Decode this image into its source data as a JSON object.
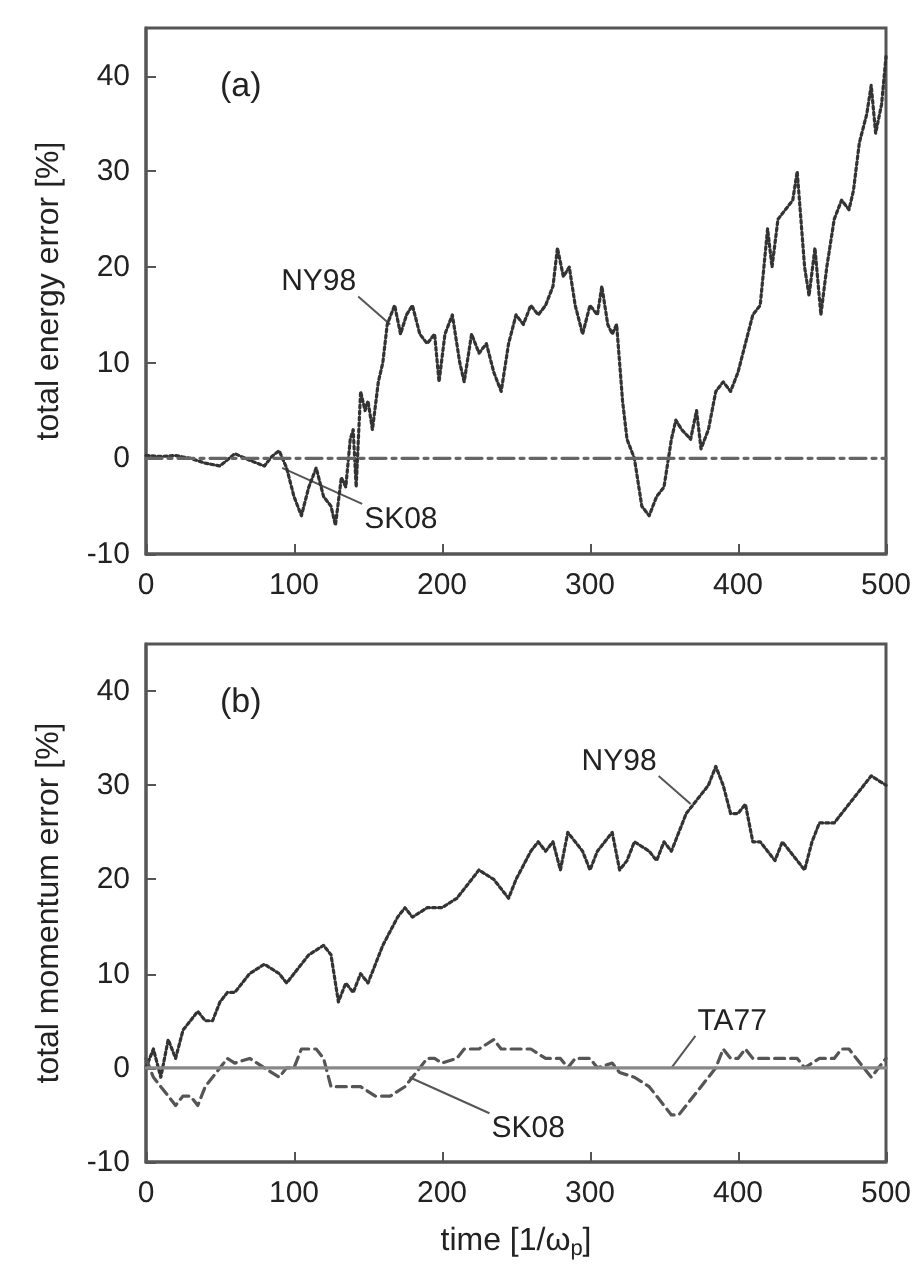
{
  "chart_data": [
    {
      "type": "line",
      "ylabel": "total energy error [%]",
      "xlim": [
        0,
        500
      ],
      "xticks": [
        0,
        100,
        200,
        300,
        400,
        500
      ],
      "ylim": [
        -10,
        45
      ],
      "yticks": [
        -10,
        0,
        10,
        20,
        30,
        40
      ],
      "grid": false,
      "marker": "none",
      "annotations": [
        "(a)",
        {
          "text": "NY98",
          "x": 165,
          "y": 14
        },
        {
          "text": "SK08",
          "x": 92,
          "y": -1
        }
      ],
      "series": [
        {
          "color": "#333333",
          "line_style": "dotted",
          "x": [
            0,
            10,
            20,
            30,
            40,
            50,
            60,
            70,
            80,
            85,
            90,
            95,
            100,
            105,
            110,
            115,
            120,
            125,
            128,
            132,
            135,
            138,
            140,
            142,
            145,
            148,
            150,
            153,
            157,
            160,
            163,
            168,
            172,
            176,
            180,
            185,
            190,
            195,
            198,
            202,
            207,
            212,
            215,
            220,
            225,
            230,
            235,
            240,
            245,
            250,
            255,
            260,
            265,
            270,
            275,
            278,
            282,
            286,
            290,
            295,
            300,
            305,
            308,
            312,
            315,
            318,
            322,
            325,
            330,
            335,
            340,
            345,
            350,
            355,
            358,
            362,
            368,
            372,
            375,
            380,
            385,
            390,
            395,
            400,
            405,
            410,
            415,
            420,
            423,
            427,
            432,
            437,
            440,
            445,
            448,
            452,
            456,
            460,
            465,
            470,
            475,
            478,
            482,
            487,
            490,
            493,
            497,
            500
          ],
          "values": [
            0.3,
            0.2,
            0.3,
            0,
            -0.5,
            -0.8,
            0.5,
            -0.2,
            -0.8,
            0.2,
            0.8,
            -1,
            -4,
            -6,
            -3,
            -1,
            -4,
            -5,
            -7,
            -2,
            -3,
            2,
            3,
            -3,
            7,
            5,
            6,
            3,
            8,
            10,
            14,
            16,
            13,
            15,
            16,
            13,
            12,
            13,
            8,
            13,
            15,
            10,
            8,
            13,
            11,
            12,
            9,
            7,
            12,
            15,
            14,
            16,
            15,
            16,
            18,
            22,
            19,
            20,
            16,
            13,
            16,
            15,
            18,
            14,
            13,
            14,
            6,
            2,
            0,
            -5,
            -6,
            -4,
            -3,
            2,
            4,
            3,
            2,
            5,
            1,
            3,
            7,
            8,
            7,
            9,
            12,
            15,
            16,
            24,
            20,
            25,
            26,
            27,
            30,
            20,
            17,
            22,
            15,
            20,
            25,
            27,
            26,
            28,
            33,
            36,
            39,
            34,
            37,
            42
          ]
        },
        {
          "color": "#666666",
          "line_style": "dashdot",
          "x": [
            0,
            500
          ],
          "values": [
            0,
            0
          ]
        }
      ]
    },
    {
      "type": "line",
      "xlabel": "time [1/ω$_{p}$]",
      "ylabel": "total momentum error [%]",
      "xlim": [
        0,
        500
      ],
      "xticks": [
        0,
        100,
        200,
        300,
        400,
        500
      ],
      "ylim": [
        -10,
        45
      ],
      "yticks": [
        -10,
        0,
        10,
        20,
        30,
        40
      ],
      "grid": false,
      "marker": "none",
      "annotations": [
        "(b)",
        {
          "text": "NY98",
          "x": 368,
          "y": 28
        },
        {
          "text": "TA77",
          "x": 355,
          "y": 0
        },
        {
          "text": "SK08",
          "x": 178,
          "y": -1
        }
      ],
      "series": [
        {
          "color": "#333333",
          "line_style": "dotted",
          "x": [
            0,
            5,
            10,
            15,
            20,
            25,
            30,
            35,
            40,
            45,
            50,
            55,
            60,
            70,
            80,
            90,
            95,
            100,
            110,
            120,
            125,
            130,
            135,
            140,
            145,
            150,
            155,
            160,
            170,
            175,
            180,
            190,
            200,
            210,
            220,
            225,
            235,
            245,
            250,
            260,
            265,
            270,
            275,
            280,
            285,
            290,
            295,
            300,
            305,
            315,
            320,
            325,
            330,
            340,
            345,
            350,
            355,
            360,
            365,
            370,
            375,
            380,
            385,
            390,
            395,
            400,
            405,
            410,
            415,
            420,
            425,
            430,
            440,
            445,
            450,
            455,
            465,
            475,
            480,
            490,
            500
          ],
          "values": [
            0,
            2,
            -1,
            3,
            1,
            4,
            5,
            6,
            5,
            5,
            7,
            8,
            8,
            10,
            11,
            10,
            9,
            10,
            12,
            13,
            12,
            7,
            9,
            8,
            10,
            9,
            11,
            13,
            16,
            17,
            16,
            17,
            17,
            18,
            20,
            21,
            20,
            18,
            20,
            23,
            24,
            23,
            24,
            21,
            25,
            24,
            23,
            21,
            23,
            25,
            21,
            22,
            24,
            23,
            22,
            24,
            23,
            25,
            27,
            28,
            29,
            30,
            32,
            30,
            27,
            27,
            28,
            24,
            24,
            23,
            22,
            24,
            22,
            21,
            24,
            26,
            26,
            28,
            29,
            31,
            30
          ]
        },
        {
          "color": "#555555",
          "line_style": "dashed",
          "x": [
            0,
            5,
            10,
            15,
            20,
            25,
            30,
            35,
            40,
            45,
            50,
            55,
            60,
            70,
            80,
            90,
            95,
            100,
            105,
            110,
            115,
            120,
            125,
            135,
            145,
            155,
            165,
            175,
            180,
            190,
            195,
            200,
            210,
            215,
            225,
            235,
            240,
            250,
            260,
            270,
            280,
            285,
            290,
            300,
            305,
            315,
            320,
            330,
            340,
            350,
            355,
            360,
            370,
            375,
            380,
            385,
            390,
            395,
            400,
            405,
            410,
            420,
            430,
            440,
            445,
            455,
            465,
            470,
            475,
            480,
            485,
            490,
            495,
            500
          ],
          "values": [
            1,
            -1,
            -2,
            -3,
            -4,
            -3,
            -3,
            -4,
            -2,
            -1,
            0,
            1,
            0.5,
            1,
            0,
            -1,
            0,
            0,
            2,
            2,
            2,
            1,
            -2,
            -2,
            -2,
            -3,
            -3,
            -2,
            -1,
            1,
            1,
            0.5,
            1,
            2,
            2,
            3,
            2,
            2,
            2,
            1,
            1,
            0,
            1,
            1,
            0,
            0.5,
            -0.5,
            -1,
            -2,
            -4,
            -5,
            -5,
            -3,
            -2,
            -1,
            0,
            2,
            1,
            1,
            2,
            1,
            1,
            1,
            1,
            0,
            1,
            1,
            2,
            2,
            1,
            0,
            -1,
            0,
            1
          ]
        },
        {
          "color": "#888888",
          "line_style": "solid",
          "x": [
            0,
            500
          ],
          "values": [
            0,
            0
          ]
        }
      ]
    }
  ]
}
